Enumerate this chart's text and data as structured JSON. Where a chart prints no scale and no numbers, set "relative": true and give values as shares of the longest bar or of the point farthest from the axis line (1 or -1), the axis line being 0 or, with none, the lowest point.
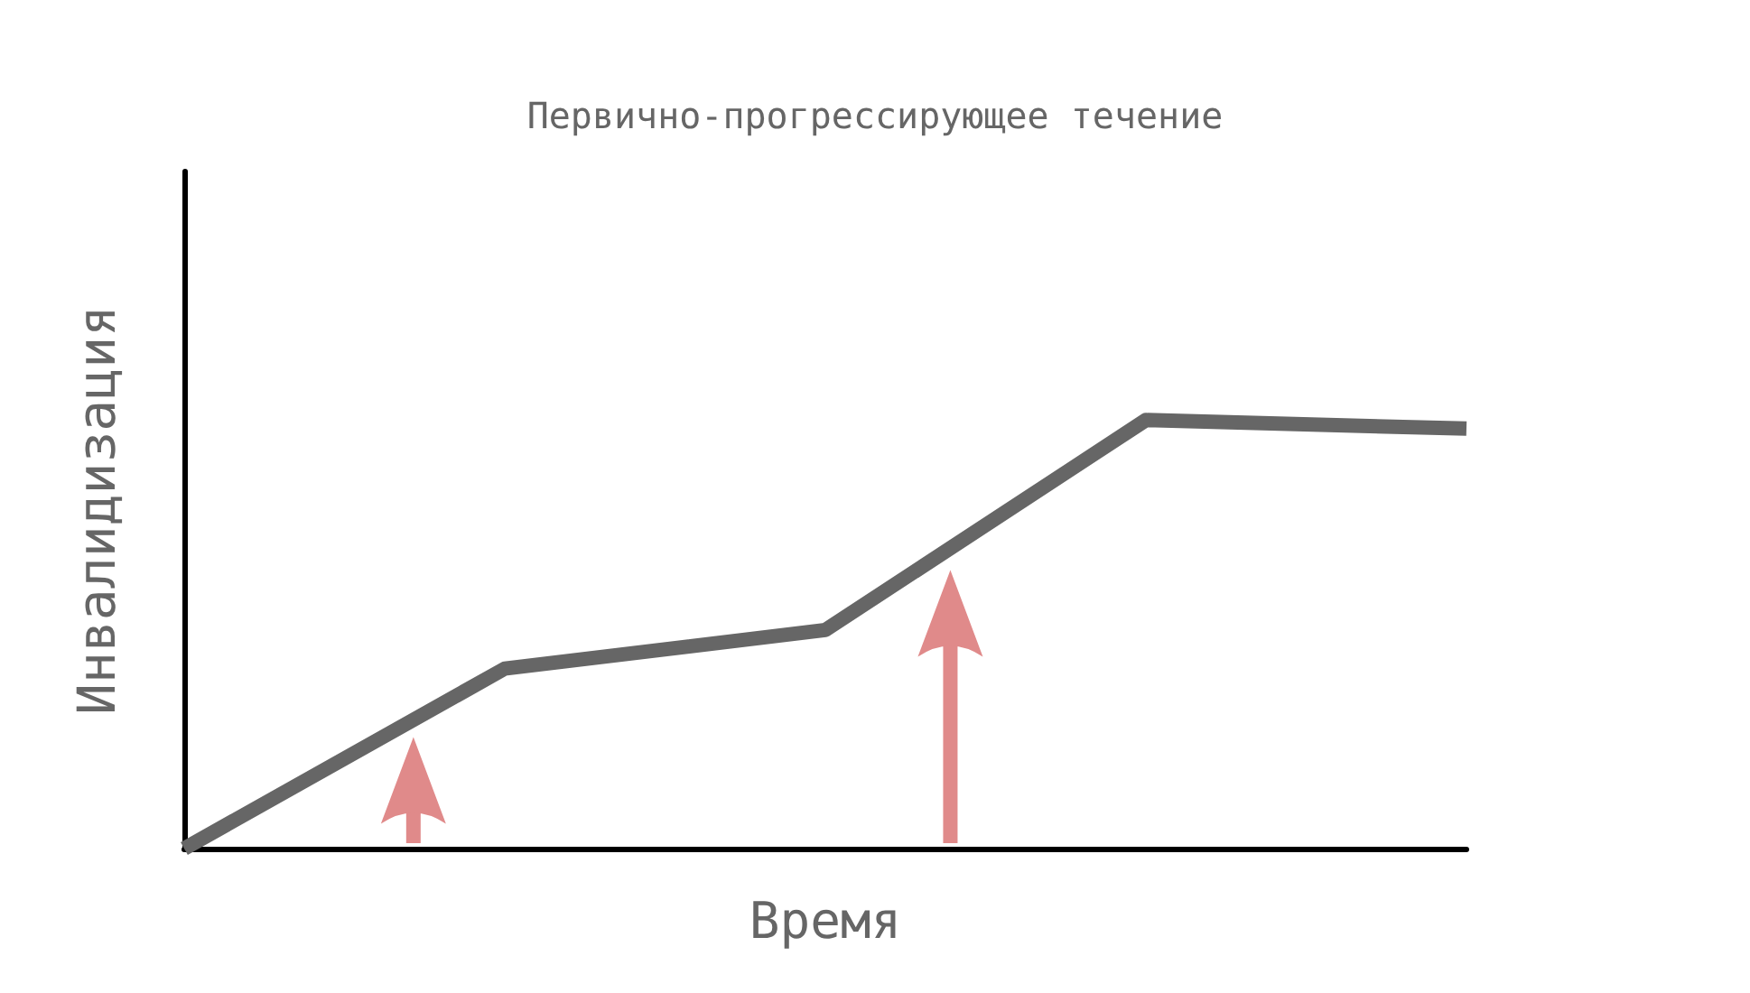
{
  "chart_data": {
    "type": "line",
    "title": "Первично-прогрессирующее течение",
    "xlabel": "Время",
    "ylabel": "Инвалидизация",
    "relative": true,
    "categories": [
      null,
      null,
      null,
      null,
      null
    ],
    "series": [
      {
        "color": "#666666",
        "values": [
          0,
          0.42,
          0.51,
          1,
          0.98
        ]
      }
    ],
    "marker": "none",
    "line_style": "solid",
    "grid": false
  }
}
